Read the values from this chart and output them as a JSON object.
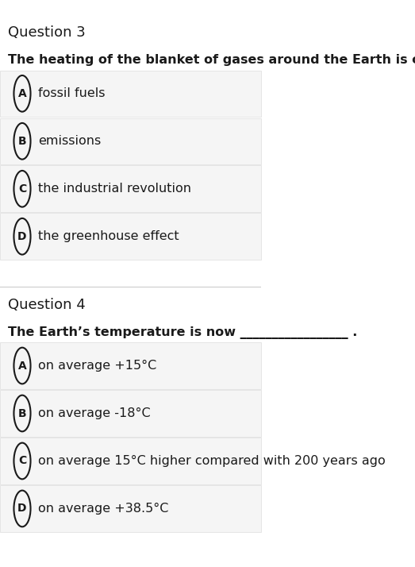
{
  "bg_color": "#ffffff",
  "option_bg_color": "#f5f5f5",
  "option_border_color": "#dddddd",
  "text_color": "#1a1a1a",
  "circle_color": "#1a1a1a",
  "question3_title": "Question 3",
  "question3_prompt": "The heating of the blanket of gases around the Earth is called___",
  "question3_options": [
    [
      "A",
      "fossil fuels"
    ],
    [
      "B",
      "emissions"
    ],
    [
      "C",
      "the industrial revolution"
    ],
    [
      "D",
      "the greenhouse effect"
    ]
  ],
  "question4_title": "Question 4",
  "question4_prompt": "The Earth’s temperature is now _________________ .",
  "question4_options": [
    [
      "A",
      "on average +15°C"
    ],
    [
      "B",
      "on average -18°C"
    ],
    [
      "C",
      "on average 15°C higher compared with 200 years ago"
    ],
    [
      "D",
      "on average +38.5°C"
    ]
  ],
  "title_fontsize": 13,
  "prompt_fontsize": 11.5,
  "option_fontsize": 11.5,
  "circle_fontsize": 10,
  "sep_color": "#cccccc",
  "fig_width": 5.23,
  "fig_height": 7.14
}
